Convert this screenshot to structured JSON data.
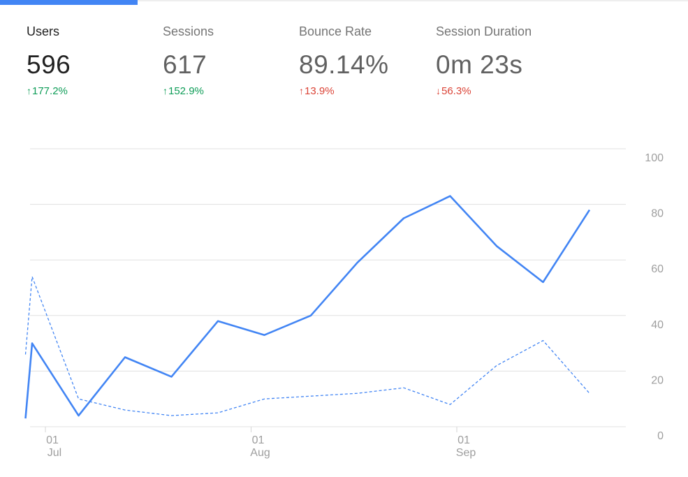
{
  "metrics": [
    {
      "label": "Users",
      "value": "596",
      "delta": "177.2%",
      "direction": "up",
      "tone": "good",
      "active": true
    },
    {
      "label": "Sessions",
      "value": "617",
      "delta": "152.9%",
      "direction": "up",
      "tone": "good",
      "active": false
    },
    {
      "label": "Bounce Rate",
      "value": "89.14%",
      "delta": "13.9%",
      "direction": "up",
      "tone": "bad",
      "active": false
    },
    {
      "label": "Session Duration",
      "value": "0m 23s",
      "delta": "56.3%",
      "direction": "down",
      "tone": "bad",
      "active": false
    }
  ],
  "colors": {
    "accent": "#4285f4",
    "positive": "#0f9d58",
    "negative": "#db4437"
  },
  "chart_data": {
    "type": "line",
    "ylim": [
      0,
      100
    ],
    "yticks": [
      0,
      20,
      40,
      60,
      80,
      100
    ],
    "grid": true,
    "y_axis_position": "right",
    "xticks": [
      {
        "date": "2017-07-01",
        "day": "01",
        "month": "Jul"
      },
      {
        "date": "2017-08-01",
        "day": "01",
        "month": "Aug"
      },
      {
        "date": "2017-09-01",
        "day": "01",
        "month": "Sep"
      }
    ],
    "series": [
      {
        "style": "solid",
        "x": [
          "2017-06-28",
          "2017-06-29",
          "2017-07-06",
          "2017-07-13",
          "2017-07-20",
          "2017-07-27",
          "2017-08-03",
          "2017-08-10",
          "2017-08-17",
          "2017-08-24",
          "2017-08-31",
          "2017-09-07",
          "2017-09-14",
          "2017-09-21"
        ],
        "values": [
          3,
          30,
          4,
          25,
          18,
          38,
          33,
          40,
          59,
          75,
          83,
          65,
          52,
          78
        ]
      },
      {
        "style": "dashed",
        "x": [
          "2017-06-28",
          "2017-06-29",
          "2017-07-06",
          "2017-07-13",
          "2017-07-20",
          "2017-07-27",
          "2017-08-03",
          "2017-08-10",
          "2017-08-17",
          "2017-08-24",
          "2017-08-31",
          "2017-09-07",
          "2017-09-14",
          "2017-09-21"
        ],
        "values": [
          26,
          54,
          10,
          6,
          4,
          5,
          10,
          11,
          12,
          14,
          8,
          22,
          31,
          12
        ]
      }
    ]
  }
}
